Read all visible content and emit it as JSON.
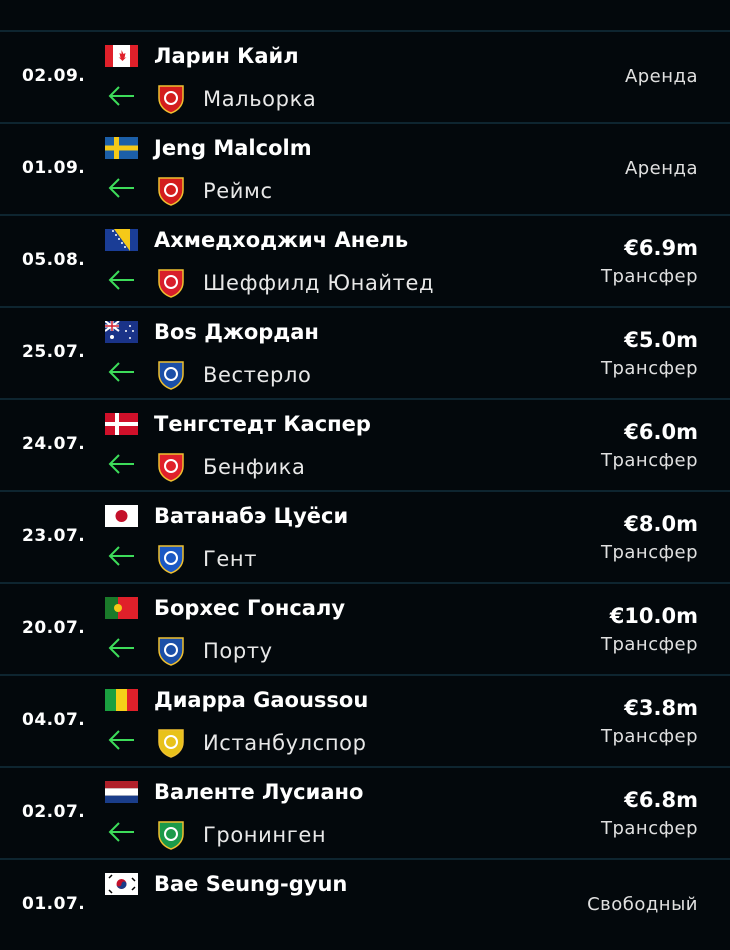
{
  "accent_color": "#3ddc5a",
  "transfers": [
    {
      "date": "02.09.",
      "player": "Ларин Кайл",
      "flag": "canada",
      "club": "Мальорка",
      "crest_color": "#d31d1d",
      "fee": "",
      "type": "Аренда"
    },
    {
      "date": "01.09.",
      "player": "Jeng Malcolm",
      "flag": "sweden",
      "club": "Реймс",
      "crest_color": "#d31d1d",
      "fee": "",
      "type": "Аренда"
    },
    {
      "date": "05.08.",
      "player": "Ахмедходжич Анель",
      "flag": "bosnia",
      "club": "Шеффилд Юнайтед",
      "crest_color": "#d81e2a",
      "fee": "€6.9m",
      "type": "Трансфер"
    },
    {
      "date": "25.07.",
      "player": "Bos Джордан",
      "flag": "australia",
      "club": "Вестерло",
      "crest_color": "#1b4fa8",
      "fee": "€5.0m",
      "type": "Трансфер"
    },
    {
      "date": "24.07.",
      "player": "Тенгстедт Каспер",
      "flag": "denmark",
      "club": "Бенфика",
      "crest_color": "#e0202a",
      "fee": "€6.0m",
      "type": "Трансфер"
    },
    {
      "date": "23.07.",
      "player": "Ватанабэ Цуёси",
      "flag": "japan",
      "club": "Гент",
      "crest_color": "#1b58c4",
      "fee": "€8.0m",
      "type": "Трансфер"
    },
    {
      "date": "20.07.",
      "player": "Борхес Гонсалу",
      "flag": "portugal",
      "club": "Порту",
      "crest_color": "#1b4fa8",
      "fee": "€10.0m",
      "type": "Трансфер"
    },
    {
      "date": "04.07.",
      "player": "Диарра Gaoussou",
      "flag": "mali",
      "club": "Истанбулспор",
      "crest_color": "#e8c21a",
      "fee": "€3.8m",
      "type": "Трансфер"
    },
    {
      "date": "02.07.",
      "player": "Валенте Лусиано",
      "flag": "netherlands",
      "club": "Гронинген",
      "crest_color": "#1b9a4a",
      "fee": "€6.8m",
      "type": "Трансфер"
    },
    {
      "date": "01.07.",
      "player": "Bae Seung-gyun",
      "flag": "south-korea",
      "club": "",
      "crest_color": "",
      "fee": "",
      "type": "Свободный"
    }
  ]
}
